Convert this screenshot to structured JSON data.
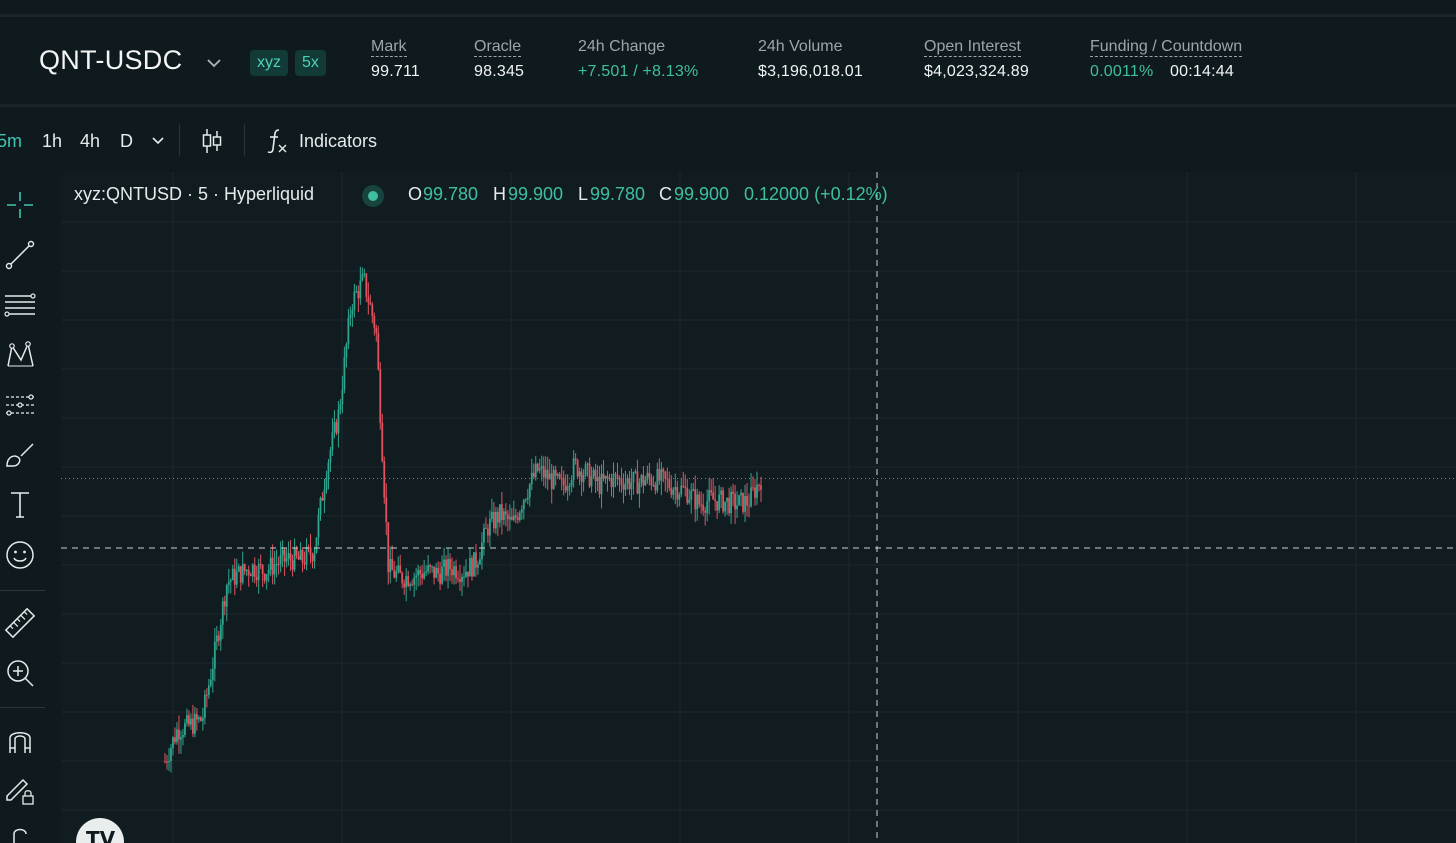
{
  "header": {
    "pair": "QNT-USDC",
    "badges": [
      "xyz",
      "5x"
    ],
    "stats": [
      {
        "label": "Mark",
        "value": "99.711"
      },
      {
        "label": "Oracle",
        "value": "98.345"
      },
      {
        "label": "24h Change",
        "value": "+7.501 / +8.13%"
      },
      {
        "label": "24h Volume",
        "value": "$3,196,018.01"
      },
      {
        "label": "Open Interest",
        "value": "$4,023,324.89"
      },
      {
        "label": "Funding / Countdown",
        "value": "0.0011%",
        "value2": "00:14:44"
      }
    ]
  },
  "toolbar": {
    "timeframes": [
      "5m",
      "1h",
      "4h",
      "D"
    ],
    "active_timeframe": "5m",
    "indicators_label": "Indicators"
  },
  "legend": {
    "symbol": "xyz:QNTUSD · 5 · Hyperliquid",
    "o_label": "O",
    "o": "99.780",
    "h_label": "H",
    "h": "99.900",
    "l_label": "L",
    "l": "99.780",
    "c_label": "C",
    "c": "99.900",
    "change": "0.12000 (+0.12%)"
  },
  "chart_data": {
    "type": "candlestick",
    "colors": {
      "up": "#2fa58e",
      "down": "#e0535f",
      "background": "#111c21",
      "grid": "#1c272b"
    },
    "crosshair": true,
    "last_price_line": true,
    "sampled_prices": [
      86.4,
      87.9,
      88.1,
      88.4,
      91.5,
      94.9,
      95.3,
      95.6,
      95.4,
      95.8,
      96.0,
      95.9,
      96.4,
      100.3,
      102.9,
      108.1,
      109.2,
      106.8,
      95.5,
      95.1,
      95.2,
      95.4,
      95.3,
      95.6,
      95.4,
      95.8,
      97.5,
      98.1,
      97.6,
      99.1,
      100.2,
      99.8,
      99.4,
      100.4,
      100.0,
      99.5,
      99.8,
      99.7,
      99.6,
      99.8,
      99.7,
      99.4,
      99.2,
      98.6,
      98.8,
      98.7,
      98.6,
      98.7,
      99.8
    ]
  }
}
